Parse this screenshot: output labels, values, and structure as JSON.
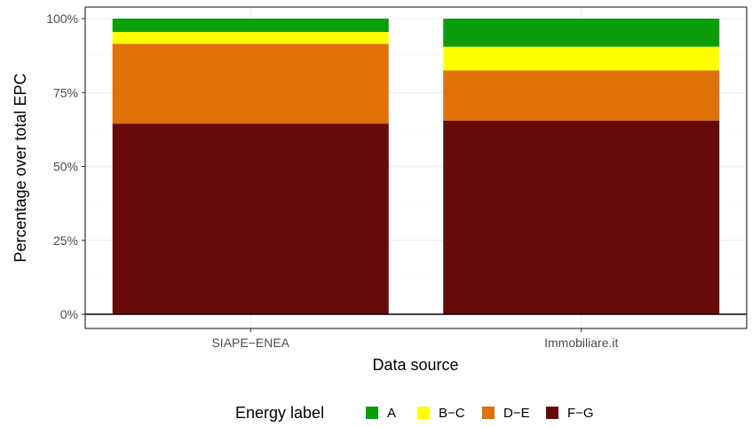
{
  "chart_data": {
    "type": "bar",
    "stacked": true,
    "xlabel": "Data source",
    "ylabel": "Percentage over total EPC",
    "categories": [
      "SIAPE−ENEA",
      "Immobiliare.it"
    ],
    "ylim": [
      0,
      100
    ],
    "y_ticks": [
      0,
      25,
      50,
      75,
      100
    ],
    "y_tick_labels": [
      "0%",
      "25%",
      "50%",
      "75%",
      "100%"
    ],
    "grid": true,
    "series": [
      {
        "name": "F−G",
        "color": "#670A0A",
        "values": [
          64.5,
          65.5
        ]
      },
      {
        "name": "D−E",
        "color": "#E07008",
        "values": [
          27.0,
          17.0
        ]
      },
      {
        "name": "B−C",
        "color": "#FFFF00",
        "values": [
          4.0,
          8.0
        ]
      },
      {
        "name": "A",
        "color": "#0C9D0C",
        "values": [
          4.5,
          9.5
        ]
      }
    ],
    "legend": {
      "title": "Energy label",
      "position": "bottom",
      "order": [
        "A",
        "B−C",
        "D−E",
        "F−G"
      ]
    }
  }
}
